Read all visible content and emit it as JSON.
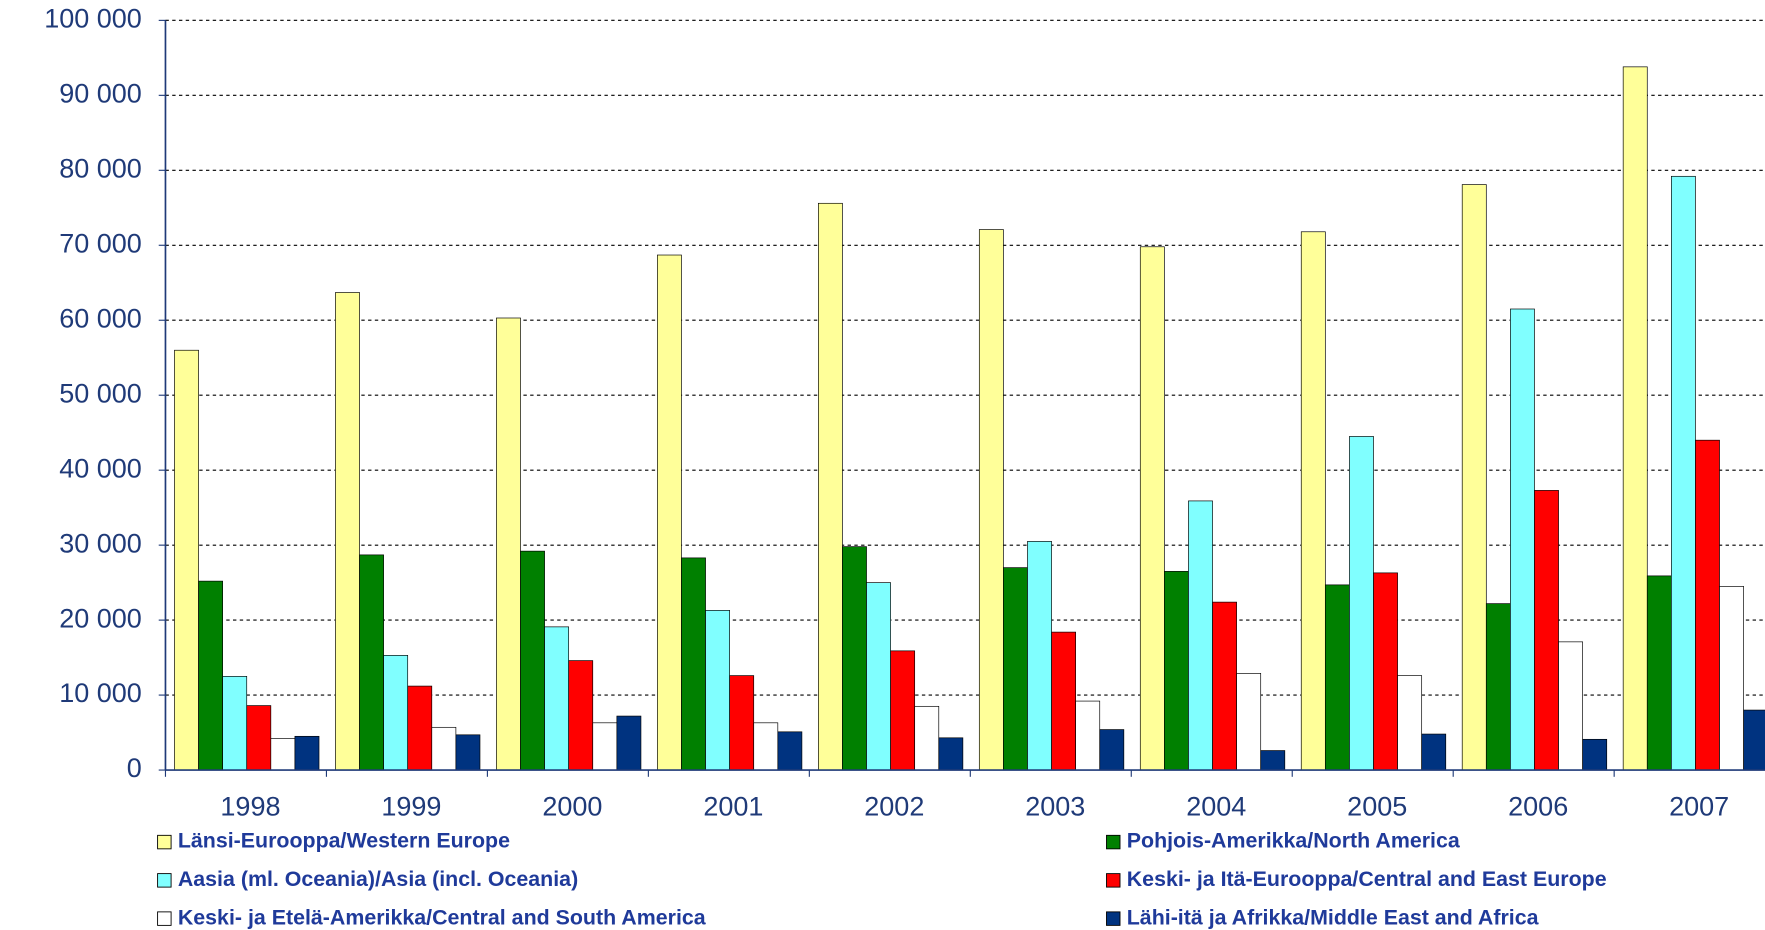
{
  "chart_data": {
    "type": "bar",
    "categories": [
      "1998",
      "1999",
      "2000",
      "2001",
      "2002",
      "2003",
      "2004",
      "2005",
      "2006",
      "2007"
    ],
    "series": [
      {
        "name": "Länsi-Eurooppa/Western Europe",
        "color": "#ffff99",
        "values": [
          56000,
          63700,
          60300,
          68700,
          75600,
          72100,
          69800,
          71800,
          78100,
          93800
        ]
      },
      {
        "name": "Pohjois-Amerikka/North America",
        "color": "#008000",
        "values": [
          25200,
          28700,
          29200,
          28300,
          29800,
          27000,
          26500,
          24700,
          22200,
          25900
        ]
      },
      {
        "name": "Aasia (ml. Oceania)/Asia (incl. Oceania)",
        "color": "#80ffff",
        "values": [
          12500,
          15300,
          19100,
          21300,
          25000,
          30500,
          35900,
          44500,
          61500,
          79200
        ]
      },
      {
        "name": "Keski- ja Itä-Eurooppa/Central and East Europe",
        "color": "#ff0000",
        "values": [
          8600,
          11200,
          14600,
          12600,
          15900,
          18400,
          22400,
          26300,
          37300,
          44000
        ]
      },
      {
        "name": "Keski- ja Etelä-Amerikka/Central and South America",
        "color": "#ffffff",
        "values": [
          4200,
          5700,
          6300,
          6300,
          8500,
          9200,
          12900,
          12600,
          17100,
          24500
        ]
      },
      {
        "name": "Lähi-itä ja Afrikka/Middle East and Africa",
        "color": "#003380",
        "values": [
          4500,
          4700,
          7200,
          5100,
          4300,
          5400,
          2600,
          4800,
          4100,
          8000
        ]
      }
    ],
    "ylim": [
      0,
      100000
    ],
    "yticks": [
      0,
      {
        "value": 10000,
        "label": "10 000"
      },
      {
        "value": 20000,
        "label": "20 000"
      },
      {
        "value": 30000,
        "label": "30 000"
      },
      {
        "value": 40000,
        "label": "40 000"
      },
      {
        "value": 50000,
        "label": "50 000"
      },
      {
        "value": 60000,
        "label": "60 000"
      },
      {
        "value": 70000,
        "label": "70 000"
      },
      {
        "value": 80000,
        "label": "80 000"
      },
      {
        "value": 90000,
        "label": "90 000"
      },
      {
        "value": 100000,
        "label": "100 000"
      }
    ],
    "grid": true,
    "legend": "bottom"
  }
}
